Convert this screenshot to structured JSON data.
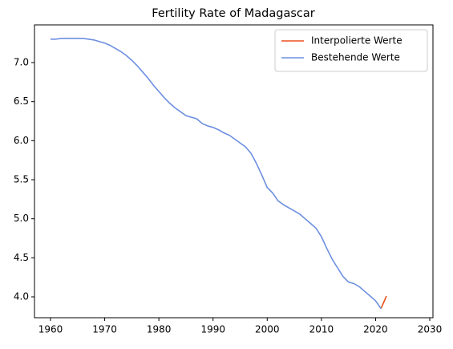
{
  "chart_data": {
    "type": "line",
    "title": "Fertility Rate of Madagascar",
    "series": [
      {
        "name": "Interpolierte Werte",
        "color": "#e8501e",
        "x": [
          2021,
          2022
        ],
        "values": [
          3.85,
          4.01
        ]
      },
      {
        "name": "Bestehende Werte",
        "color": "#6d8fe0",
        "x": [
          1960,
          1961,
          1962,
          1963,
          1964,
          1965,
          1966,
          1967,
          1968,
          1969,
          1970,
          1971,
          1972,
          1973,
          1974,
          1975,
          1976,
          1977,
          1978,
          1979,
          1980,
          1981,
          1982,
          1983,
          1984,
          1985,
          1986,
          1987,
          1988,
          1989,
          1990,
          1991,
          1992,
          1993,
          1994,
          1995,
          1996,
          1997,
          1998,
          1999,
          2000,
          2001,
          2002,
          2003,
          2004,
          2005,
          2006,
          2007,
          2008,
          2009,
          2010,
          2011,
          2012,
          2013,
          2014,
          2015,
          2016,
          2017,
          2018,
          2019,
          2020,
          2021
        ],
        "values": [
          7.3,
          7.3,
          7.31,
          7.31,
          7.31,
          7.31,
          7.31,
          7.3,
          7.29,
          7.27,
          7.25,
          7.22,
          7.18,
          7.14,
          7.09,
          7.03,
          6.96,
          6.88,
          6.8,
          6.71,
          6.63,
          6.55,
          6.48,
          6.42,
          6.37,
          6.32,
          6.3,
          6.28,
          6.22,
          6.19,
          6.17,
          6.14,
          6.1,
          6.07,
          6.02,
          5.97,
          5.92,
          5.84,
          5.71,
          5.56,
          5.4,
          5.33,
          5.23,
          5.18,
          5.14,
          5.1,
          5.06,
          5.0,
          4.94,
          4.88,
          4.77,
          4.62,
          4.48,
          4.37,
          4.26,
          4.19,
          4.17,
          4.13,
          4.07,
          4.01,
          3.95,
          3.85
        ]
      }
    ],
    "xlim": [
      1957.04,
      2030.59
    ],
    "xticks": [
      1960,
      1970,
      1980,
      1990,
      2000,
      2010,
      2020,
      2030
    ],
    "ylim": [
      3.733,
      7.483
    ],
    "yticks": [
      {
        "value": 4,
        "label": "4.0"
      },
      4.5,
      {
        "value": 5,
        "label": "5.0"
      },
      5.5,
      {
        "value": 6,
        "label": "6.0"
      },
      6.5,
      {
        "value": 7,
        "label": "7.0"
      }
    ],
    "legend": "upper right"
  }
}
